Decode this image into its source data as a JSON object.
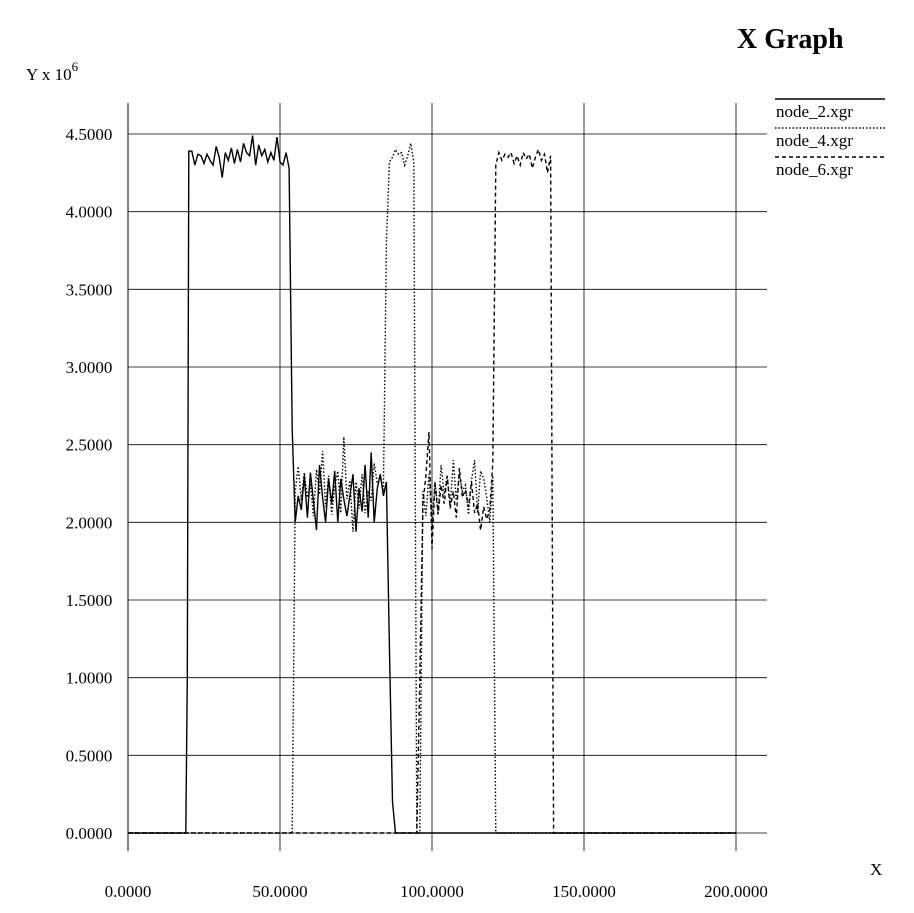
{
  "chart_data": {
    "type": "line",
    "title": "X Graph",
    "xlabel": "X",
    "ylabel_prefix": "Y x 10",
    "ylabel_exponent": "6",
    "xlim": [
      0,
      200
    ],
    "ylim": [
      0,
      4.65
    ],
    "grid": true,
    "legend_position": "top-right",
    "x_ticks": [
      0,
      50,
      100,
      150,
      200
    ],
    "x_tick_labels": [
      "0.0000",
      "50.0000",
      "100.0000",
      "150.0000",
      "200.0000"
    ],
    "y_ticks": [
      0,
      0.5,
      1,
      1.5,
      2,
      2.5,
      3,
      3.5,
      4,
      4.5
    ],
    "y_tick_labels": [
      "0.0000",
      "0.5000",
      "1.0000",
      "1.5000",
      "2.0000",
      "2.5000",
      "3.0000",
      "3.5000",
      "4.0000",
      "4.5000"
    ],
    "series": [
      {
        "name": "node_2.xgr",
        "dash": "solid",
        "points": [
          [
            0,
            0
          ],
          [
            19,
            0
          ],
          [
            19.5,
            1.0
          ],
          [
            20,
            4.39
          ],
          [
            21,
            4.39
          ],
          [
            22,
            4.3
          ],
          [
            23,
            4.37
          ],
          [
            24,
            4.36
          ],
          [
            25,
            4.31
          ],
          [
            26,
            4.37
          ],
          [
            27,
            4.33
          ],
          [
            28,
            4.3
          ],
          [
            29,
            4.42
          ],
          [
            30,
            4.35
          ],
          [
            31,
            4.22
          ],
          [
            32,
            4.38
          ],
          [
            33,
            4.33
          ],
          [
            34,
            4.41
          ],
          [
            35,
            4.31
          ],
          [
            36,
            4.4
          ],
          [
            37,
            4.32
          ],
          [
            38,
            4.44
          ],
          [
            39,
            4.38
          ],
          [
            40,
            4.36
          ],
          [
            41,
            4.49
          ],
          [
            42,
            4.3
          ],
          [
            43,
            4.43
          ],
          [
            44,
            4.36
          ],
          [
            45,
            4.4
          ],
          [
            46,
            4.32
          ],
          [
            47,
            4.38
          ],
          [
            48,
            4.33
          ],
          [
            49,
            4.48
          ],
          [
            50,
            4.32
          ],
          [
            51,
            4.3
          ],
          [
            52,
            4.38
          ],
          [
            53,
            4.28
          ],
          [
            54,
            2.6
          ],
          [
            55,
            2.0
          ],
          [
            56,
            2.17
          ],
          [
            57,
            2.08
          ],
          [
            58,
            2.3
          ],
          [
            59,
            2.03
          ],
          [
            60,
            2.32
          ],
          [
            61,
            2.14
          ],
          [
            62,
            1.95
          ],
          [
            63,
            2.37
          ],
          [
            64,
            2.16
          ],
          [
            65,
            2.0
          ],
          [
            66,
            2.28
          ],
          [
            67,
            2.12
          ],
          [
            68,
            2.33
          ],
          [
            69,
            2.0
          ],
          [
            70,
            2.28
          ],
          [
            71,
            2.15
          ],
          [
            72,
            2.04
          ],
          [
            73,
            2.17
          ],
          [
            74,
            2.31
          ],
          [
            75,
            1.94
          ],
          [
            76,
            2.22
          ],
          [
            77,
            2.07
          ],
          [
            78,
            2.37
          ],
          [
            79,
            2.03
          ],
          [
            80,
            2.45
          ],
          [
            81,
            2.0
          ],
          [
            82,
            2.22
          ],
          [
            83,
            2.31
          ],
          [
            84,
            2.17
          ],
          [
            85,
            2.26
          ],
          [
            86,
            1.2
          ],
          [
            87,
            0.2
          ],
          [
            88,
            0
          ],
          [
            200,
            0
          ]
        ]
      },
      {
        "name": "node_4.xgr",
        "dash": "dotted",
        "points": [
          [
            0,
            0
          ],
          [
            54,
            0
          ],
          [
            55,
            2.2
          ],
          [
            56,
            2.36
          ],
          [
            57,
            2.14
          ],
          [
            58,
            2.32
          ],
          [
            59,
            2.16
          ],
          [
            60,
            2.25
          ],
          [
            61,
            2.04
          ],
          [
            62,
            2.34
          ],
          [
            63,
            2.18
          ],
          [
            64,
            2.46
          ],
          [
            65,
            2.1
          ],
          [
            66,
            2.3
          ],
          [
            67,
            2.05
          ],
          [
            68,
            2.23
          ],
          [
            69,
            2.33
          ],
          [
            70,
            2.06
          ],
          [
            71,
            2.55
          ],
          [
            72,
            2.15
          ],
          [
            73,
            2.27
          ],
          [
            74,
            1.94
          ],
          [
            75,
            2.26
          ],
          [
            76,
            2.09
          ],
          [
            77,
            2.31
          ],
          [
            78,
            2.06
          ],
          [
            79,
            2.2
          ],
          [
            80,
            2.14
          ],
          [
            81,
            2.38
          ],
          [
            82,
            2.25
          ],
          [
            83,
            2.3
          ],
          [
            84,
            2.2
          ],
          [
            85,
            3.8
          ],
          [
            86,
            4.32
          ],
          [
            87,
            4.35
          ],
          [
            88,
            4.4
          ],
          [
            89,
            4.37
          ],
          [
            90,
            4.38
          ],
          [
            91,
            4.3
          ],
          [
            92,
            4.36
          ],
          [
            93,
            4.44
          ],
          [
            94,
            4.32
          ],
          [
            95,
            0
          ],
          [
            96,
            0
          ],
          [
            97,
            2.2
          ],
          [
            98,
            2.04
          ],
          [
            99,
            2.31
          ],
          [
            100,
            1.97
          ],
          [
            101,
            2.26
          ],
          [
            102,
            2.06
          ],
          [
            103,
            2.37
          ],
          [
            104,
            2.18
          ],
          [
            105,
            2.3
          ],
          [
            106,
            2.1
          ],
          [
            107,
            2.4
          ],
          [
            108,
            2.14
          ],
          [
            109,
            2.31
          ],
          [
            110,
            2.2
          ],
          [
            111,
            2.24
          ],
          [
            112,
            2.05
          ],
          [
            113,
            2.27
          ],
          [
            114,
            2.4
          ],
          [
            115,
            2.06
          ],
          [
            116,
            2.33
          ],
          [
            117,
            2.28
          ],
          [
            118,
            2.16
          ],
          [
            119,
            2.0
          ],
          [
            120,
            2.3
          ],
          [
            121,
            0
          ],
          [
            200,
            0
          ]
        ]
      },
      {
        "name": "node_6.xgr",
        "dash": "dashed",
        "points": [
          [
            0,
            0
          ],
          [
            95,
            0
          ],
          [
            96,
            1.0
          ],
          [
            97,
            2.12
          ],
          [
            98,
            2.3
          ],
          [
            99,
            2.58
          ],
          [
            100,
            1.83
          ],
          [
            101,
            2.26
          ],
          [
            102,
            2.05
          ],
          [
            103,
            2.24
          ],
          [
            104,
            2.12
          ],
          [
            105,
            2.3
          ],
          [
            106,
            2.09
          ],
          [
            107,
            2.2
          ],
          [
            108,
            2.03
          ],
          [
            109,
            2.35
          ],
          [
            110,
            2.16
          ],
          [
            111,
            2.21
          ],
          [
            112,
            2.1
          ],
          [
            113,
            2.26
          ],
          [
            114,
            2.06
          ],
          [
            115,
            2.12
          ],
          [
            116,
            1.95
          ],
          [
            117,
            2.1
          ],
          [
            118,
            2.02
          ],
          [
            119,
            2.08
          ],
          [
            120,
            2.38
          ],
          [
            121,
            4.3
          ],
          [
            122,
            4.38
          ],
          [
            123,
            4.33
          ],
          [
            124,
            4.37
          ],
          [
            125,
            4.35
          ],
          [
            126,
            4.38
          ],
          [
            127,
            4.31
          ],
          [
            128,
            4.36
          ],
          [
            129,
            4.3
          ],
          [
            130,
            4.38
          ],
          [
            131,
            4.34
          ],
          [
            132,
            4.37
          ],
          [
            133,
            4.28
          ],
          [
            134,
            4.35
          ],
          [
            135,
            4.4
          ],
          [
            136,
            4.33
          ],
          [
            137,
            4.37
          ],
          [
            138,
            4.25
          ],
          [
            139,
            4.36
          ],
          [
            140,
            0
          ],
          [
            200,
            0
          ]
        ]
      }
    ]
  }
}
